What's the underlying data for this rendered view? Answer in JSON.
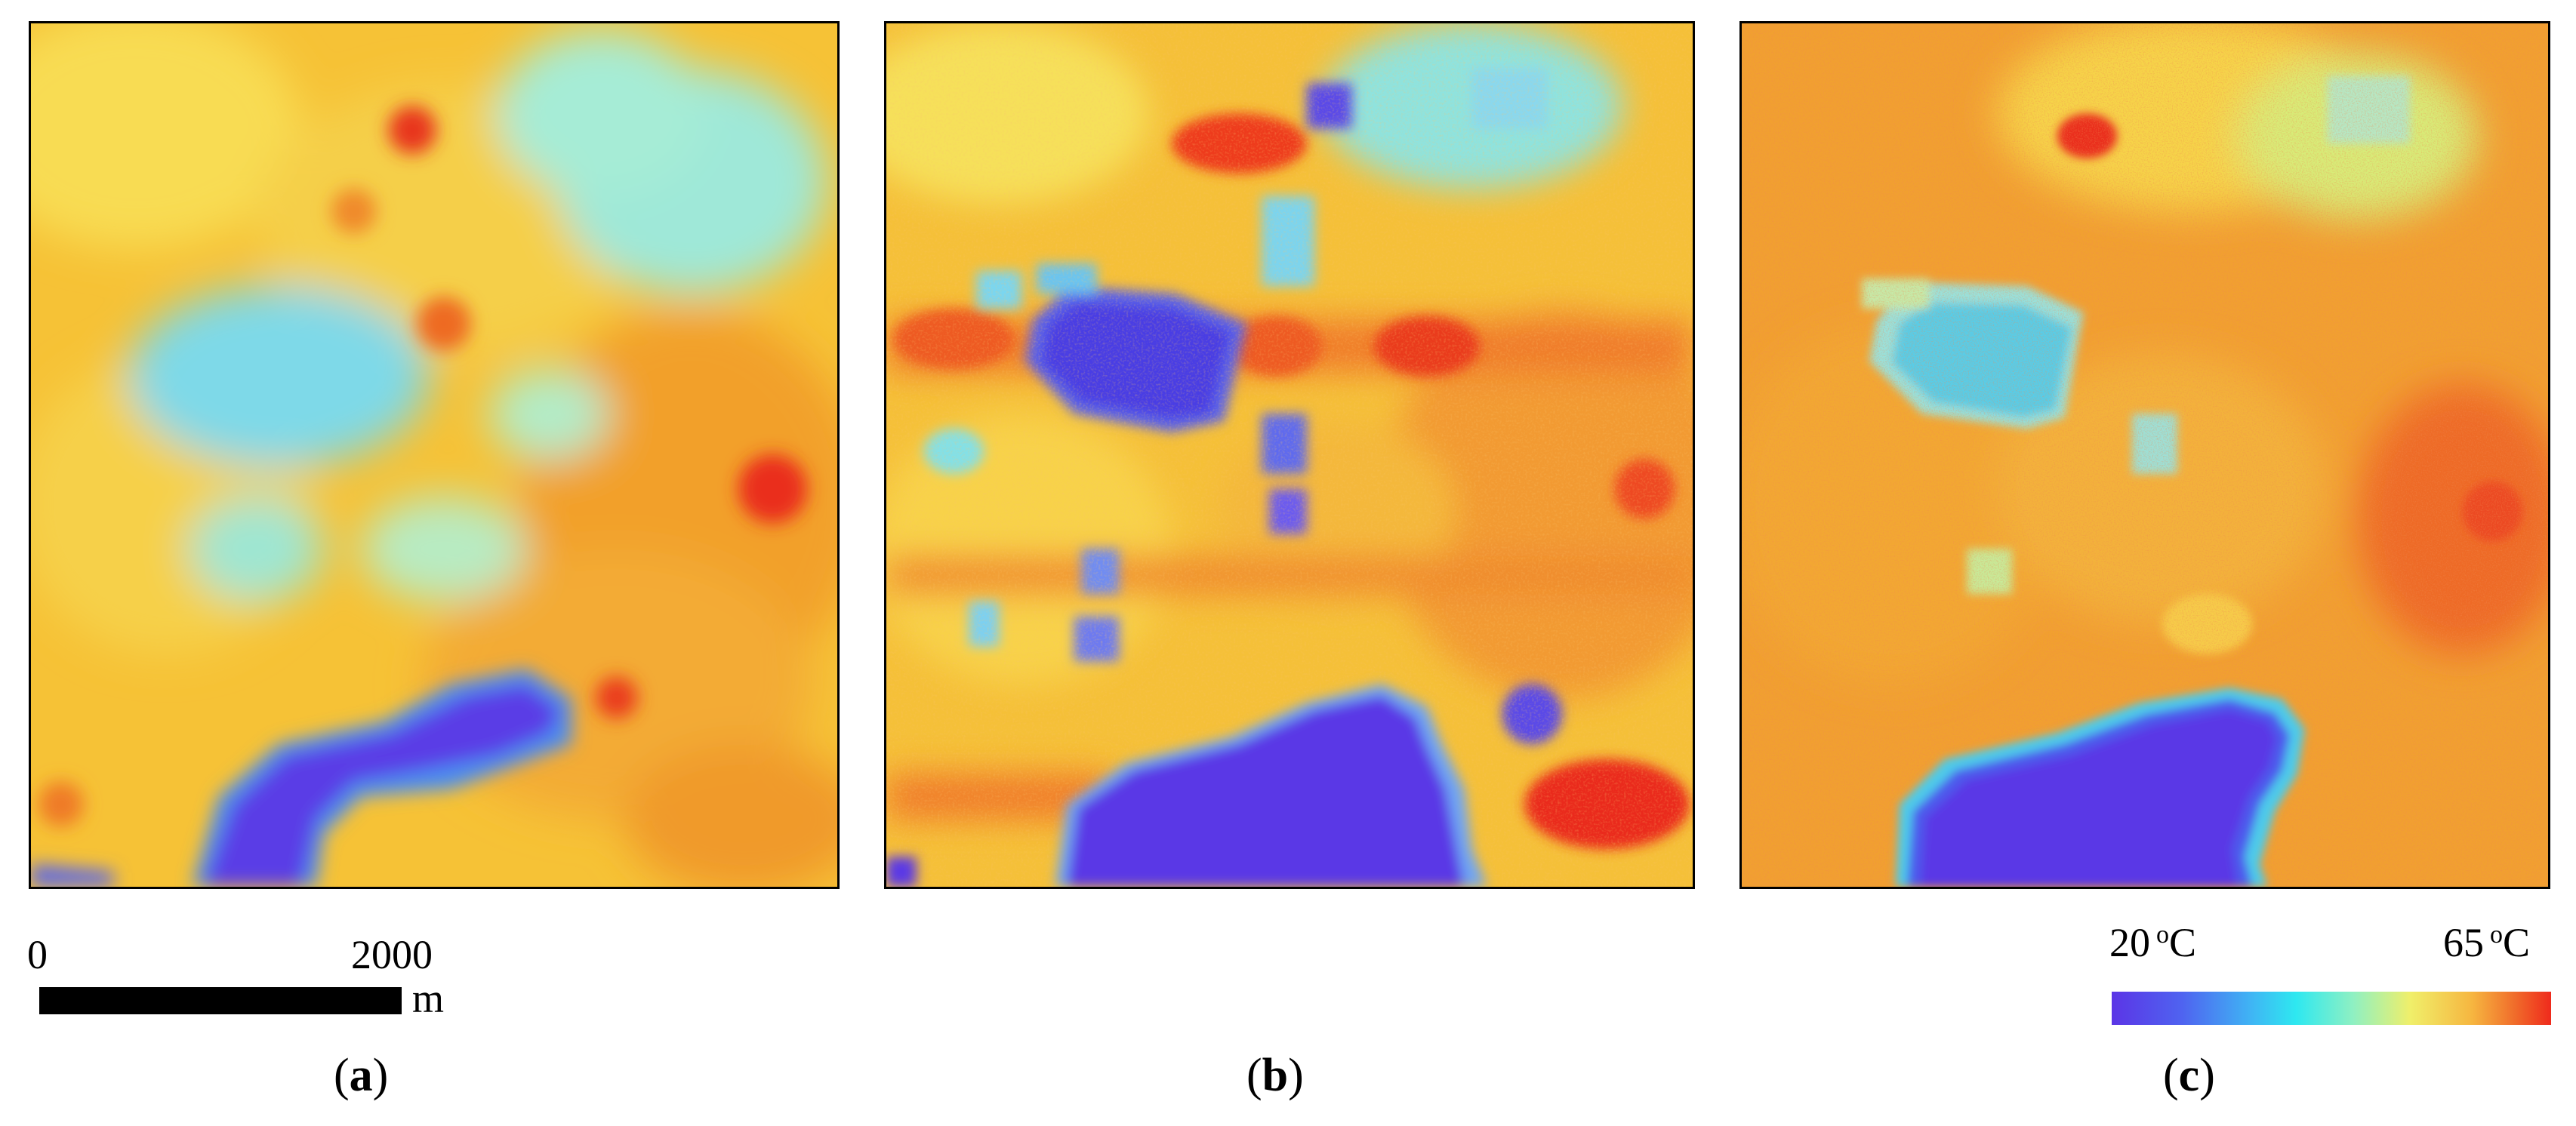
{
  "panels": [
    {
      "id": "a",
      "caption_open": "(",
      "caption_letter": "a",
      "caption_close": ")"
    },
    {
      "id": "b",
      "caption_open": "(",
      "caption_letter": "b",
      "caption_close": ")"
    },
    {
      "id": "c",
      "caption_open": "(",
      "caption_letter": "c",
      "caption_close": ")"
    }
  ],
  "scale_bar": {
    "min_label": "0",
    "max_label": "2000",
    "unit": "m"
  },
  "colorbar": {
    "min_value": "20",
    "max_value": "65",
    "degree_mark": "o",
    "unit": "C",
    "colors": [
      "#5b35e6",
      "#3fb6f4",
      "#2ee8f0",
      "#f0ef6a",
      "#f6b640",
      "#ef2a1c"
    ]
  }
}
